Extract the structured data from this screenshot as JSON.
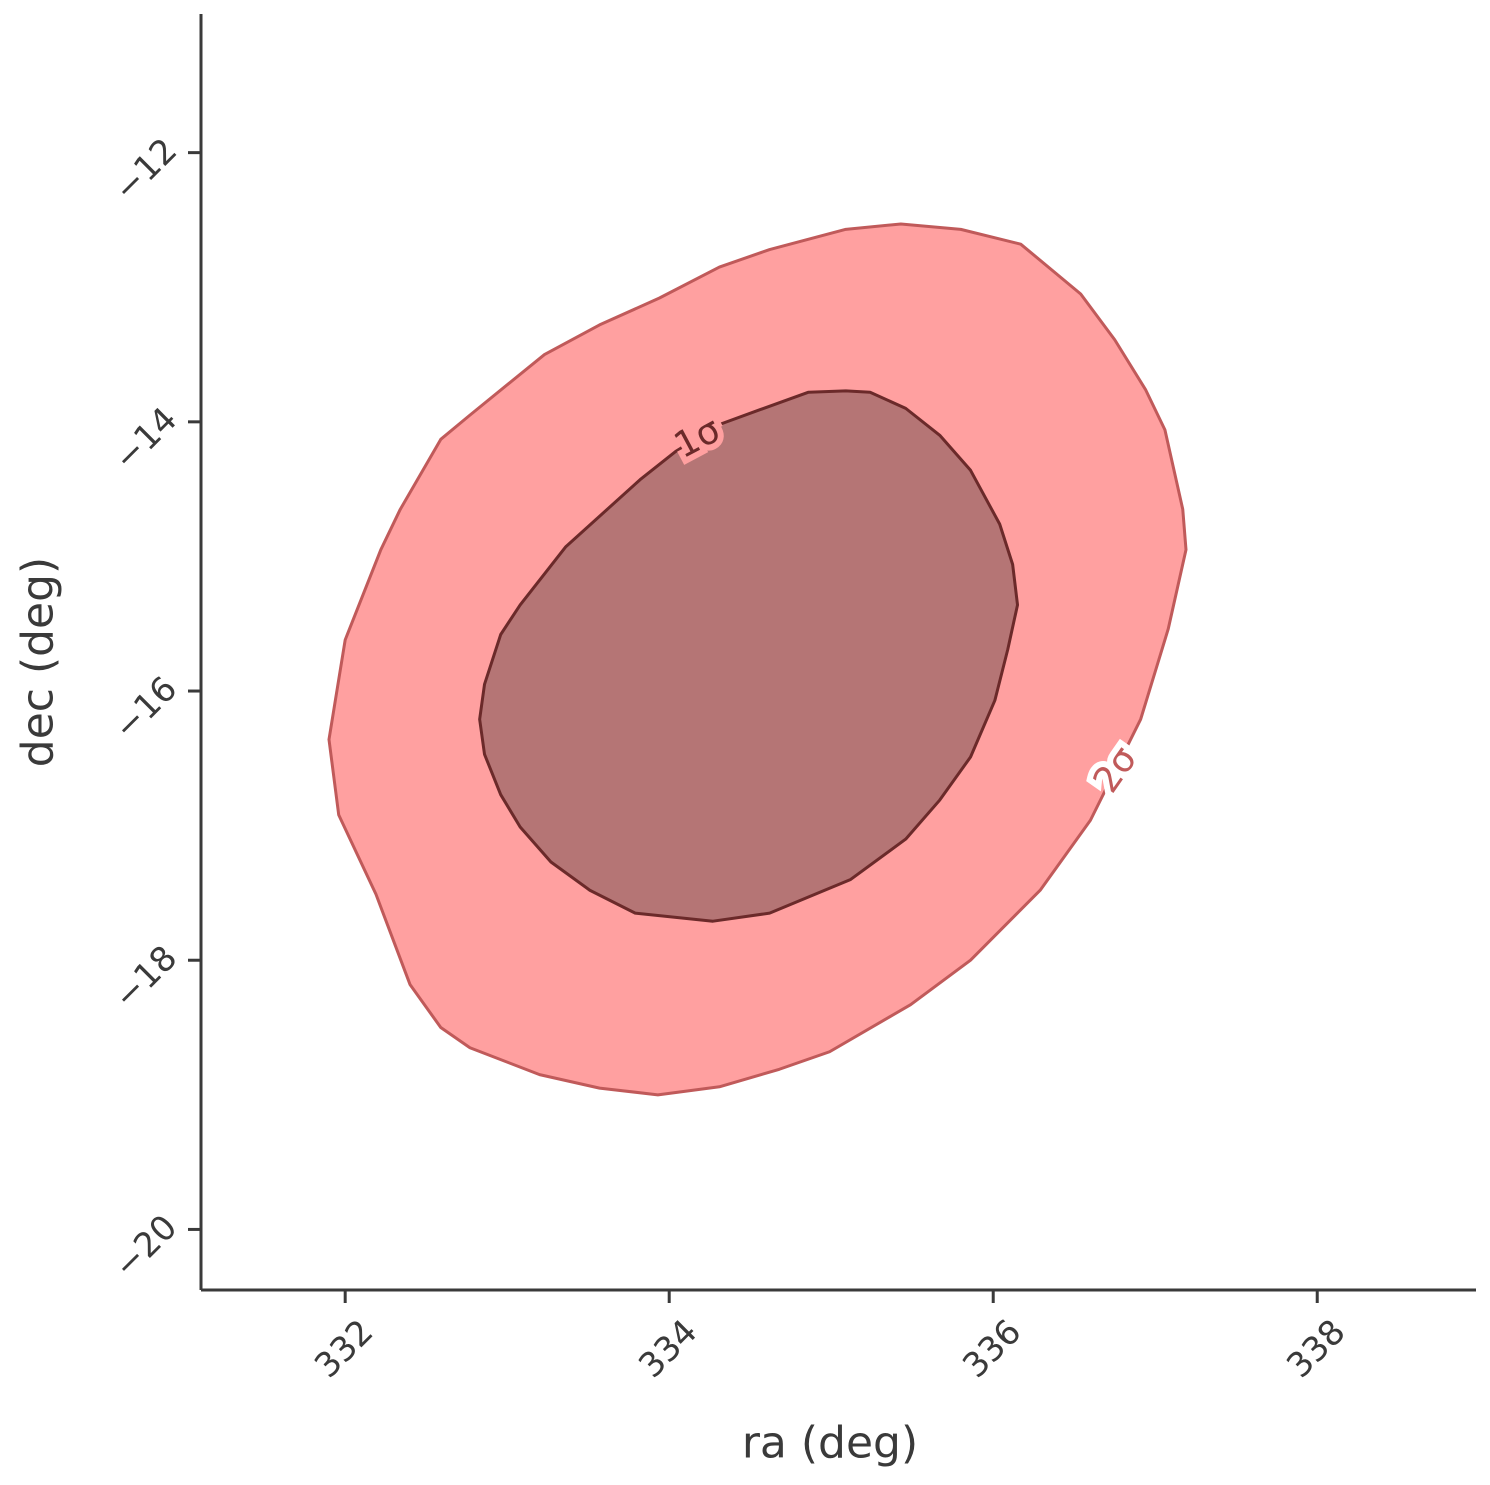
{
  "chart_data": {
    "type": "contour",
    "xlabel": "ra (deg)",
    "ylabel": "dec (deg)",
    "xlim": [
      331.11,
      338.98
    ],
    "ylim": [
      -20.45,
      -10.97
    ],
    "xticks": [
      332,
      334,
      336,
      338
    ],
    "yticks": [
      {
        "value": -12,
        "label": "−12"
      },
      {
        "value": -14,
        "label": "−14"
      },
      {
        "value": -16,
        "label": "−16"
      },
      {
        "value": -18,
        "label": "−18"
      },
      {
        "value": -20,
        "label": "−20"
      }
    ],
    "series": [
      {
        "name": "2σ",
        "color": "#ffa0a0",
        "edge_color": "#c05a5a",
        "x": [
          331.9,
          331.96,
          332.19,
          332.4,
          332.59,
          332.77,
          333.2,
          333.57,
          333.93,
          334.31,
          334.68,
          334.99,
          335.49,
          335.86,
          336.29,
          336.6,
          336.91,
          337.08,
          337.19,
          337.17,
          337.06,
          336.94,
          336.75,
          336.54,
          336.17,
          335.8,
          335.43,
          335.09,
          334.62,
          334.31,
          333.94,
          333.57,
          333.23,
          332.77,
          332.59,
          332.34,
          332.22,
          332.0
        ],
        "y": [
          -16.36,
          -16.92,
          -17.51,
          -18.18,
          -18.5,
          -18.65,
          -18.85,
          -18.95,
          -19.0,
          -18.94,
          -18.81,
          -18.68,
          -18.33,
          -18.0,
          -17.48,
          -16.96,
          -16.21,
          -15.54,
          -14.95,
          -14.65,
          -14.06,
          -13.76,
          -13.39,
          -13.05,
          -12.68,
          -12.57,
          -12.53,
          -12.57,
          -12.72,
          -12.85,
          -13.08,
          -13.28,
          -13.5,
          -13.95,
          -14.13,
          -14.65,
          -14.95,
          -15.62
        ]
      },
      {
        "name": "1σ",
        "color": "#b57575",
        "edge_color": "#6b2a2a",
        "x": [
          332.83,
          332.86,
          332.96,
          333.08,
          333.27,
          333.51,
          333.79,
          334.27,
          334.62,
          335.12,
          335.46,
          335.67,
          335.86,
          336.01,
          336.09,
          336.15,
          336.12,
          336.04,
          335.86,
          335.67,
          335.46,
          335.24,
          335.09,
          334.86,
          334.56,
          334.31,
          334.04,
          333.82,
          333.36,
          333.08,
          332.96,
          332.86
        ],
        "y": [
          -16.21,
          -16.47,
          -16.77,
          -17.01,
          -17.27,
          -17.48,
          -17.65,
          -17.71,
          -17.65,
          -17.4,
          -17.1,
          -16.81,
          -16.49,
          -16.07,
          -15.69,
          -15.36,
          -15.06,
          -14.76,
          -14.36,
          -14.1,
          -13.9,
          -13.78,
          -13.77,
          -13.78,
          -13.91,
          -14.02,
          -14.22,
          -14.43,
          -14.93,
          -15.36,
          -15.58,
          -15.95
        ]
      }
    ]
  }
}
